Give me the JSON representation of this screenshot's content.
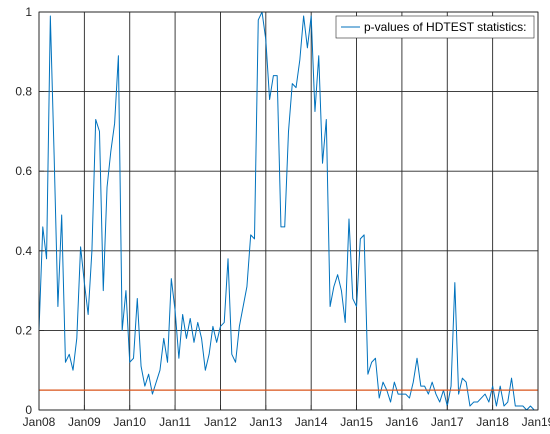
{
  "chart_data": {
    "type": "line",
    "title": "",
    "xlabel": "",
    "ylabel": "",
    "grid": true,
    "legend_position": "top-right",
    "x_range": [
      "2008-01",
      "2019-01"
    ],
    "ylim": [
      0,
      1
    ],
    "x_ticks": [
      "Jan08",
      "Jan09",
      "Jan10",
      "Jan11",
      "Jan12",
      "Jan13",
      "Jan14",
      "Jan15",
      "Jan16",
      "Jan17",
      "Jan18",
      "Jan19"
    ],
    "y_ticks": [
      "0",
      "0.2",
      "0.4",
      "0.6",
      "0.8",
      "1"
    ],
    "series": [
      {
        "name": "p-values of HDTEST statistics:",
        "color": "#0072bd",
        "x_start": "2008-01",
        "frequency": "monthly",
        "values": [
          0.2,
          0.46,
          0.38,
          0.99,
          0.64,
          0.26,
          0.49,
          0.12,
          0.14,
          0.1,
          0.18,
          0.41,
          0.32,
          0.24,
          0.4,
          0.73,
          0.7,
          0.3,
          0.56,
          0.65,
          0.72,
          0.89,
          0.2,
          0.3,
          0.12,
          0.13,
          0.28,
          0.11,
          0.06,
          0.09,
          0.04,
          0.07,
          0.1,
          0.18,
          0.12,
          0.33,
          0.25,
          0.13,
          0.24,
          0.18,
          0.23,
          0.17,
          0.22,
          0.18,
          0.1,
          0.14,
          0.21,
          0.17,
          0.21,
          0.22,
          0.38,
          0.14,
          0.12,
          0.21,
          0.26,
          0.31,
          0.44,
          0.43,
          0.98,
          1.0,
          0.93,
          0.78,
          0.84,
          0.84,
          0.46,
          0.46,
          0.7,
          0.82,
          0.81,
          0.88,
          0.99,
          0.91,
          0.99,
          0.75,
          0.89,
          0.62,
          0.73,
          0.26,
          0.31,
          0.34,
          0.3,
          0.22,
          0.48,
          0.28,
          0.26,
          0.43,
          0.44,
          0.09,
          0.12,
          0.13,
          0.03,
          0.07,
          0.05,
          0.02,
          0.07,
          0.04,
          0.04,
          0.04,
          0.03,
          0.07,
          0.13,
          0.06,
          0.06,
          0.04,
          0.07,
          0.04,
          0.02,
          0.05,
          0.01,
          0.06,
          0.32,
          0.04,
          0.08,
          0.07,
          0.01,
          0.02,
          0.02,
          0.03,
          0.04,
          0.02,
          0.06,
          0.01,
          0.06,
          0.01,
          0.02,
          0.08,
          0.01,
          0.01,
          0.01,
          0.0,
          0.01,
          0.0
        ]
      },
      {
        "name": "",
        "color": "#d95319",
        "constant": 0.05
      }
    ]
  }
}
